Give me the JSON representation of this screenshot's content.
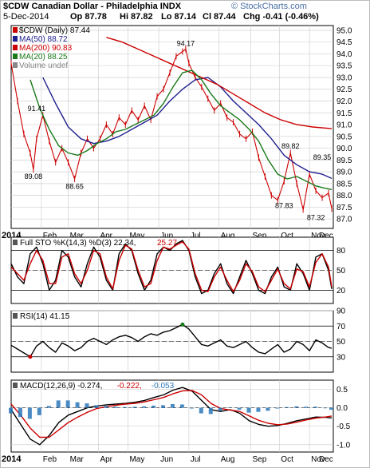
{
  "header": {
    "title": "$CDW Canadian Dollar - Philadelphia INDX",
    "watermark": "© StockCharts.com",
    "date": "5-Dec-2014",
    "quote": [
      "Op 87.78",
      "Hi 87.82",
      "Lo 87.14",
      "Cl 87.44",
      "Chg -0.41 (-0.46%)"
    ],
    "quote_arrow_color": "#cc0000"
  },
  "colors": {
    "price": "#cc0000",
    "ma50": "#1f1f8f",
    "ma200": "#cc0000",
    "ma20": "#1a7a1a",
    "stoK": "#000000",
    "stoD": "#cc0000",
    "rsi": "#000000",
    "macd": "#000000",
    "signal": "#cc0000",
    "hist": "#2a78b8",
    "frame": "#000000",
    "grid": "#d0d0d0"
  },
  "chart_data": [
    {
      "type": "line",
      "panel": "price",
      "legend": [
        {
          "label": "$CDW (Daily) 87.44",
          "color": "#cc0000"
        },
        {
          "label": "MA(50) 88.72",
          "color": "#1f1f8f"
        },
        {
          "label": "MA(200) 90.83",
          "color": "#cc0000"
        },
        {
          "label": "MA(20) 88.25",
          "color": "#1a7a1a"
        },
        {
          "label": "Volume undef",
          "color": "#888888"
        }
      ],
      "ylim": [
        86.6,
        95.2
      ],
      "yticks": [
        87.0,
        87.5,
        88.0,
        88.5,
        89.0,
        89.5,
        90.0,
        90.5,
        91.0,
        91.5,
        92.0,
        92.5,
        93.0,
        93.5,
        94.0,
        94.5,
        95.0
      ],
      "xlim": [
        0,
        100
      ],
      "x_ticks": [
        {
          "x": 0,
          "label": "2014"
        },
        {
          "x": 9.5,
          "label": "Feb"
        },
        {
          "x": 18,
          "label": "Mar"
        },
        {
          "x": 27.5,
          "label": "Apr"
        },
        {
          "x": 36.8,
          "label": "May"
        },
        {
          "x": 46.5,
          "label": "Jun"
        },
        {
          "x": 56,
          "label": "Jul"
        },
        {
          "x": 65.5,
          "label": "Aug"
        },
        {
          "x": 75.5,
          "label": "Sep"
        },
        {
          "x": 84.5,
          "label": "Oct"
        },
        {
          "x": 94,
          "label": "Nov"
        },
        {
          "x": 103,
          "label": "Dec"
        }
      ],
      "annotations": [
        {
          "x": 8,
          "y": 91.41,
          "label": "91.41"
        },
        {
          "x": 7,
          "y": 89.08,
          "label": "89.08",
          "below": true
        },
        {
          "x": 20,
          "y": 88.65,
          "label": "88.65",
          "below": true
        },
        {
          "x": 55,
          "y": 94.17,
          "label": "94.17"
        },
        {
          "x": 88,
          "y": 89.82,
          "label": "89.82"
        },
        {
          "x": 98,
          "y": 89.35,
          "label": "89.35"
        },
        {
          "x": 86,
          "y": 87.83,
          "label": "87.83",
          "below": true
        },
        {
          "x": 96,
          "y": 87.32,
          "label": "87.32",
          "below": true
        }
      ],
      "series": [
        {
          "name": "$CDW (Daily)",
          "color": "#cc0000",
          "x": [
            0,
            2,
            4,
            6,
            7,
            8,
            10,
            12,
            14,
            16,
            18,
            20,
            22,
            24,
            26,
            28,
            30,
            32,
            34,
            36,
            38,
            40,
            42,
            44,
            46,
            48,
            50,
            52,
            54,
            55,
            56,
            58,
            60,
            62,
            64,
            66,
            68,
            70,
            72,
            74,
            76,
            78,
            80,
            82,
            84,
            86,
            88,
            90,
            92,
            94,
            96,
            98,
            100,
            101
          ],
          "y": [
            93.6,
            92.0,
            90.6,
            89.8,
            89.1,
            90.4,
            91.4,
            90.3,
            89.4,
            90.0,
            89.4,
            88.7,
            89.8,
            90.4,
            90.0,
            90.4,
            91.0,
            90.6,
            91.3,
            91.0,
            91.6,
            91.2,
            91.8,
            91.2,
            92.2,
            92.5,
            93.2,
            93.9,
            94.1,
            94.2,
            93.6,
            93.0,
            92.6,
            92.1,
            91.6,
            91.9,
            91.3,
            91.1,
            90.6,
            90.4,
            90.7,
            89.6,
            88.8,
            88.0,
            87.8,
            88.6,
            89.8,
            88.5,
            87.4,
            88.9,
            88.2,
            87.9,
            88.1,
            87.44
          ]
        },
        {
          "name": "MA(50)",
          "color": "#1f1f8f",
          "x": [
            10,
            14,
            18,
            22,
            26,
            30,
            34,
            38,
            42,
            46,
            50,
            54,
            58,
            62,
            66,
            70,
            74,
            78,
            82,
            86,
            90,
            94,
            98,
            101
          ],
          "y": [
            93.0,
            91.9,
            90.9,
            90.4,
            90.2,
            90.3,
            90.5,
            90.8,
            91.1,
            91.4,
            92.0,
            92.5,
            92.9,
            93.0,
            92.6,
            92.0,
            91.5,
            91.0,
            90.4,
            89.7,
            89.3,
            89.0,
            88.9,
            88.72
          ]
        },
        {
          "name": "MA(200)",
          "color": "#cc0000",
          "x": [
            30,
            35,
            40,
            45,
            50,
            55,
            60,
            65,
            70,
            75,
            80,
            85,
            90,
            95,
            101
          ],
          "y": [
            94.7,
            94.5,
            94.2,
            93.9,
            93.6,
            93.3,
            93.0,
            92.7,
            92.3,
            91.9,
            91.5,
            91.2,
            91.0,
            90.9,
            90.83
          ]
        },
        {
          "name": "MA(20)",
          "color": "#1a7a1a",
          "x": [
            6,
            9,
            12,
            15,
            18,
            21,
            24,
            27,
            30,
            33,
            36,
            39,
            42,
            45,
            48,
            51,
            54,
            57,
            60,
            63,
            66,
            69,
            72,
            75,
            78,
            81,
            84,
            87,
            90,
            93,
            96,
            99,
            101
          ],
          "y": [
            92.9,
            91.7,
            90.8,
            90.1,
            89.8,
            89.7,
            89.9,
            90.2,
            90.4,
            90.7,
            90.8,
            91.0,
            91.2,
            91.4,
            91.9,
            92.6,
            93.2,
            93.3,
            92.9,
            92.3,
            91.8,
            91.5,
            91.2,
            90.8,
            90.3,
            89.5,
            88.9,
            88.7,
            88.8,
            88.6,
            88.4,
            88.3,
            88.25
          ]
        }
      ]
    },
    {
      "type": "line",
      "panel": "sto",
      "legend": [
        {
          "label": "Full STO %K(14,3) %D(3) 22.34,",
          "color": "#000000"
        },
        {
          "label": "25.27",
          "color": "#cc0000"
        }
      ],
      "ylim": [
        0,
        100
      ],
      "yticks": [
        20,
        50,
        80
      ],
      "series": [
        {
          "name": "%K",
          "color": "#000000",
          "x": [
            0,
            2,
            4,
            6,
            8,
            10,
            12,
            14,
            16,
            18,
            20,
            22,
            24,
            26,
            28,
            30,
            32,
            34,
            36,
            38,
            40,
            42,
            44,
            46,
            48,
            50,
            52,
            54,
            56,
            58,
            60,
            62,
            64,
            66,
            68,
            70,
            72,
            74,
            76,
            78,
            80,
            82,
            84,
            86,
            88,
            90,
            92,
            94,
            96,
            98,
            100,
            101
          ],
          "y": [
            60,
            40,
            30,
            75,
            85,
            60,
            20,
            35,
            80,
            70,
            40,
            25,
            60,
            85,
            70,
            35,
            20,
            75,
            90,
            80,
            45,
            20,
            35,
            75,
            85,
            80,
            90,
            95,
            80,
            40,
            15,
            20,
            45,
            60,
            30,
            15,
            40,
            65,
            45,
            20,
            15,
            40,
            55,
            25,
            20,
            60,
            45,
            20,
            70,
            75,
            50,
            22
          ]
        },
        {
          "name": "%D",
          "color": "#cc0000",
          "x": [
            0,
            2,
            4,
            6,
            8,
            10,
            12,
            14,
            16,
            18,
            20,
            22,
            24,
            26,
            28,
            30,
            32,
            34,
            36,
            38,
            40,
            42,
            44,
            46,
            48,
            50,
            52,
            54,
            56,
            58,
            60,
            62,
            64,
            66,
            68,
            70,
            72,
            74,
            76,
            78,
            80,
            82,
            84,
            86,
            88,
            90,
            92,
            94,
            96,
            98,
            100,
            101
          ],
          "y": [
            55,
            45,
            35,
            60,
            80,
            65,
            30,
            30,
            70,
            75,
            45,
            30,
            50,
            80,
            75,
            40,
            22,
            65,
            88,
            82,
            50,
            25,
            30,
            65,
            85,
            82,
            88,
            93,
            82,
            45,
            20,
            18,
            40,
            55,
            35,
            18,
            35,
            60,
            48,
            25,
            18,
            35,
            52,
            30,
            22,
            52,
            48,
            25,
            62,
            75,
            55,
            25
          ]
        }
      ]
    },
    {
      "type": "line",
      "panel": "rsi",
      "legend": [
        {
          "label": "RSI(14) 41.15",
          "color": "#000000"
        }
      ],
      "ylim": [
        10,
        90
      ],
      "yticks": [
        30,
        50,
        70,
        90
      ],
      "series": [
        {
          "name": "RSI(14)",
          "color": "#000000",
          "x": [
            0,
            2,
            4,
            6,
            8,
            10,
            12,
            14,
            16,
            18,
            20,
            22,
            24,
            26,
            28,
            30,
            32,
            34,
            36,
            38,
            40,
            42,
            44,
            46,
            48,
            50,
            52,
            54,
            56,
            58,
            60,
            62,
            64,
            66,
            68,
            70,
            72,
            74,
            76,
            78,
            80,
            82,
            84,
            86,
            88,
            90,
            92,
            94,
            96,
            98,
            100,
            101
          ],
          "y": [
            45,
            40,
            35,
            30,
            44,
            50,
            42,
            36,
            48,
            44,
            38,
            42,
            50,
            54,
            50,
            46,
            52,
            56,
            58,
            55,
            50,
            56,
            60,
            58,
            62,
            64,
            68,
            72,
            66,
            56,
            46,
            44,
            48,
            52,
            44,
            42,
            46,
            50,
            42,
            36,
            34,
            40,
            46,
            36,
            40,
            50,
            46,
            38,
            52,
            48,
            42,
            41.15
          ]
        }
      ]
    },
    {
      "type": "line",
      "panel": "macd",
      "legend": [
        {
          "label": "MACD(12,26,9) -0.274,",
          "color": "#000000"
        },
        {
          "label": "-0.222,",
          "color": "#cc0000"
        },
        {
          "label": "-0.053",
          "color": "#2a78b8"
        }
      ],
      "ylim": [
        -1.2,
        0.75
      ],
      "yticks": [
        -1.0,
        -0.5,
        0.0,
        0.5
      ],
      "series": [
        {
          "name": "MACD",
          "color": "#000000",
          "x": [
            0,
            3,
            6,
            9,
            12,
            15,
            18,
            21,
            24,
            27,
            30,
            33,
            36,
            39,
            42,
            45,
            48,
            51,
            54,
            57,
            60,
            63,
            66,
            69,
            72,
            75,
            78,
            81,
            84,
            87,
            90,
            93,
            96,
            99,
            101
          ],
          "y": [
            -0.05,
            -0.45,
            -0.85,
            -1.0,
            -0.75,
            -0.4,
            -0.2,
            -0.1,
            0.0,
            0.05,
            0.08,
            0.1,
            0.12,
            0.15,
            0.2,
            0.28,
            0.35,
            0.48,
            0.55,
            0.45,
            0.2,
            -0.05,
            -0.1,
            -0.05,
            -0.15,
            -0.35,
            -0.45,
            -0.5,
            -0.48,
            -0.42,
            -0.35,
            -0.3,
            -0.25,
            -0.26,
            -0.274
          ]
        },
        {
          "name": "Signal",
          "color": "#cc0000",
          "x": [
            0,
            3,
            6,
            9,
            12,
            15,
            18,
            21,
            24,
            27,
            30,
            33,
            36,
            39,
            42,
            45,
            48,
            51,
            54,
            57,
            60,
            63,
            66,
            69,
            72,
            75,
            78,
            81,
            84,
            87,
            90,
            93,
            96,
            99,
            101
          ],
          "y": [
            0.1,
            -0.2,
            -0.55,
            -0.8,
            -0.8,
            -0.6,
            -0.4,
            -0.25,
            -0.12,
            -0.02,
            0.03,
            0.07,
            0.1,
            0.12,
            0.16,
            0.22,
            0.28,
            0.38,
            0.46,
            0.47,
            0.35,
            0.12,
            -0.02,
            -0.06,
            -0.1,
            -0.22,
            -0.34,
            -0.42,
            -0.46,
            -0.44,
            -0.39,
            -0.33,
            -0.28,
            -0.25,
            -0.222
          ]
        },
        {
          "name": "Histogram",
          "color": "#2a78b8",
          "x": [
            0,
            3,
            6,
            9,
            12,
            15,
            18,
            21,
            24,
            27,
            30,
            33,
            36,
            39,
            42,
            45,
            48,
            51,
            54,
            57,
            60,
            63,
            66,
            69,
            72,
            75,
            78,
            81,
            84,
            87,
            90,
            93,
            96,
            99,
            101
          ],
          "y": [
            -0.15,
            -0.25,
            -0.3,
            -0.2,
            0.05,
            0.2,
            0.2,
            0.15,
            0.12,
            0.07,
            0.05,
            0.03,
            0.02,
            0.03,
            0.04,
            0.06,
            0.07,
            0.1,
            0.09,
            -0.02,
            -0.15,
            -0.17,
            -0.08,
            0.01,
            -0.05,
            -0.13,
            -0.11,
            -0.08,
            -0.02,
            0.02,
            0.04,
            0.03,
            0.03,
            -0.01,
            -0.053
          ]
        }
      ]
    }
  ]
}
